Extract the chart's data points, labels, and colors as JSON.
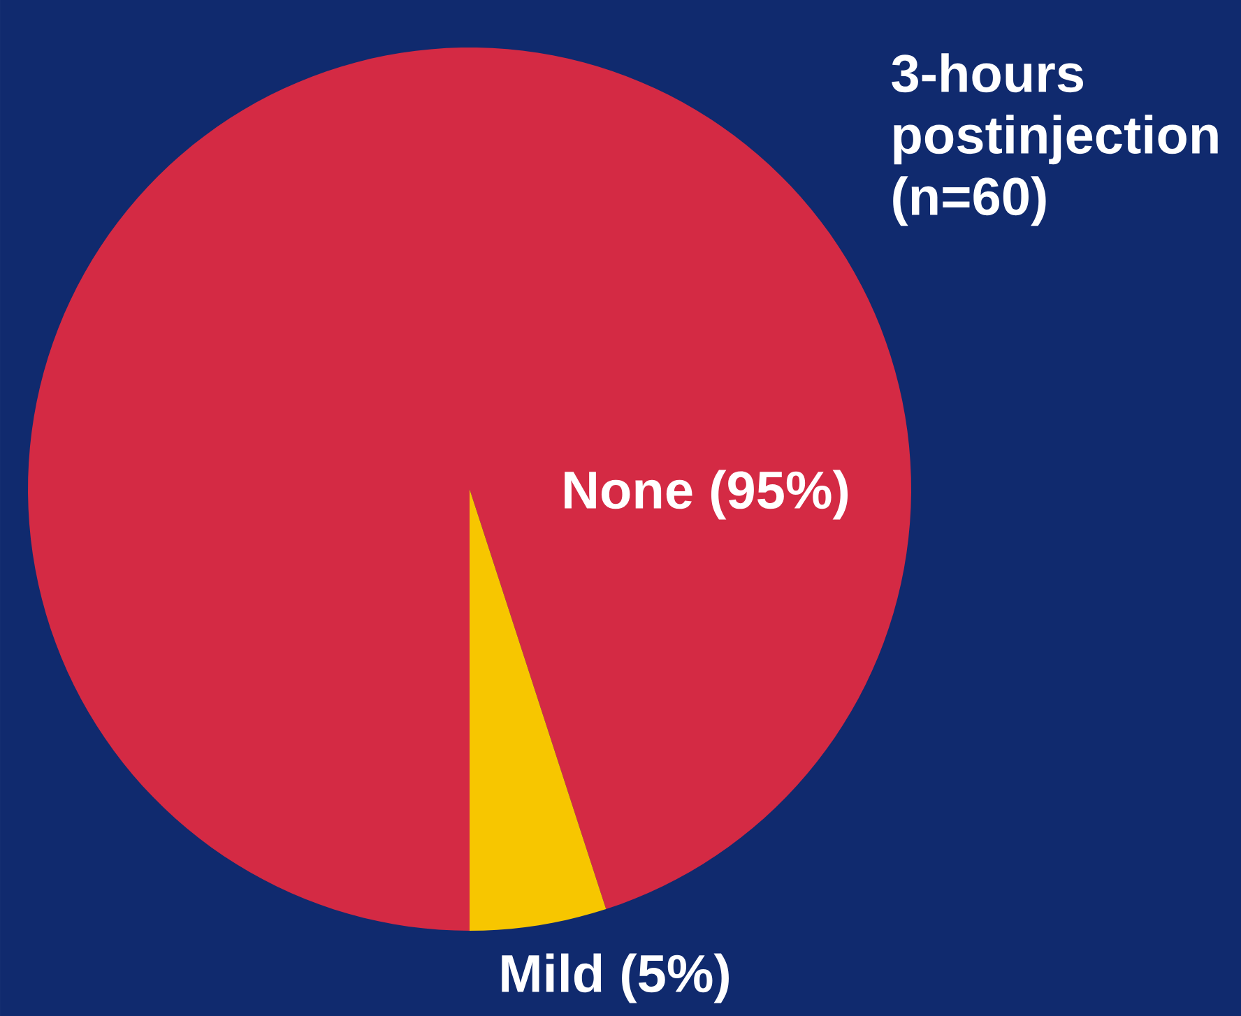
{
  "chart_data": {
    "type": "pie",
    "title": "3-hours postinjection (n=60)",
    "categories": [
      "None (95%)",
      "Mild (5%)"
    ],
    "values": [
      95,
      5
    ],
    "colors": [
      "#d42a44",
      "#f7c600"
    ]
  }
}
